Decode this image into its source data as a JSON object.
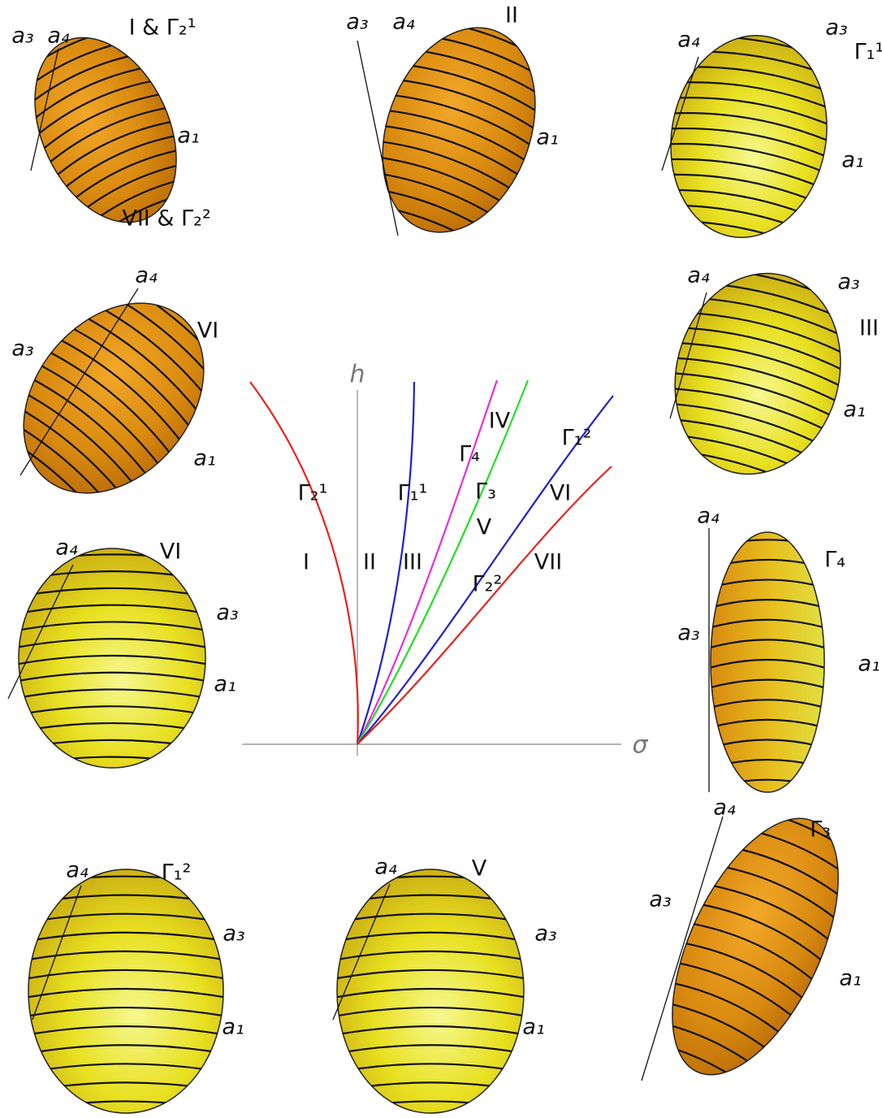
{
  "diagram": {
    "x_axis_label": "σ",
    "y_axis_label": "h",
    "curves": [
      {
        "label": "Γ₂¹",
        "color": "#e8221c"
      },
      {
        "label": "Γ₁¹",
        "color": "#2020d0"
      },
      {
        "label": "Γ₄",
        "color": "#e82ce0"
      },
      {
        "label": "Γ₃",
        "color": "#22e022"
      },
      {
        "label": "Γ₁²",
        "color": "#2020d0"
      },
      {
        "label": "Γ₂²",
        "color": "#e8221c"
      }
    ],
    "regions": [
      "I",
      "II",
      "III",
      "IV",
      "V",
      "VI",
      "VII"
    ]
  },
  "panels": [
    {
      "labels": [
        "a₃",
        "a₄",
        "a₁",
        "I & Γ₂¹",
        "VII & Γ₂²"
      ]
    },
    {
      "labels": [
        "a₃",
        "a₄",
        "a₁",
        "II"
      ]
    },
    {
      "labels": [
        "a₄",
        "a₃",
        "a₁",
        "Γ₁¹"
      ]
    },
    {
      "labels": [
        "a₄",
        "a₃",
        "a₁",
        "VI"
      ]
    },
    {
      "labels": [
        "a₄",
        "a₃",
        "a₁",
        "III"
      ]
    },
    {
      "labels": [
        "a₄",
        "a₃",
        "a₁",
        "VI"
      ]
    },
    {
      "labels": [
        "a₄",
        "a₃",
        "a₁",
        "Γ₄"
      ]
    },
    {
      "labels": [
        "a₄",
        "a₃",
        "a₁",
        "Γ₁²"
      ]
    },
    {
      "labels": [
        "a₄",
        "a₃",
        "a₁",
        "V"
      ]
    },
    {
      "labels": [
        "a₄",
        "a₃",
        "a₁",
        "Γ₃"
      ]
    }
  ]
}
